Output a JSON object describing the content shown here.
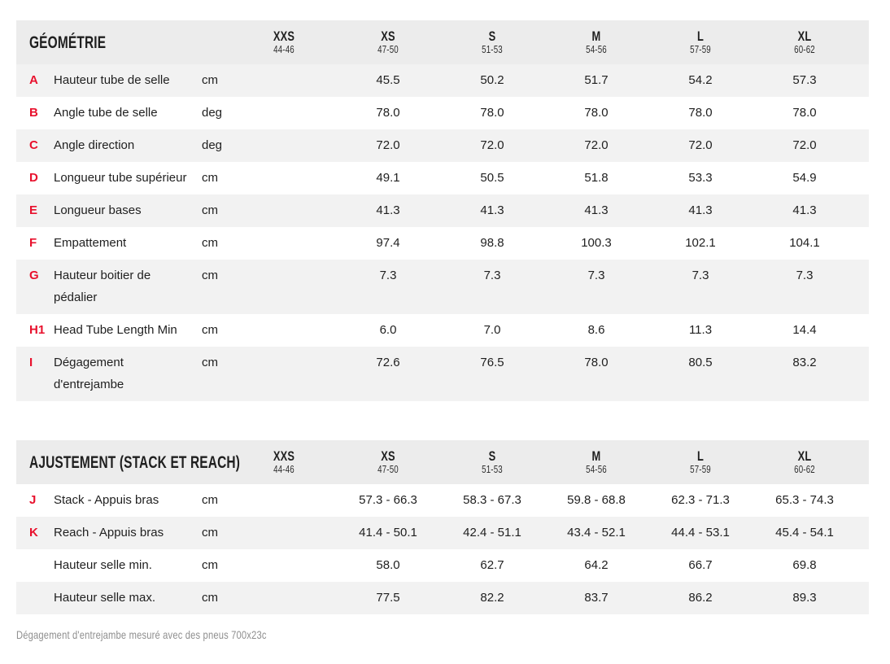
{
  "colors": {
    "accent_red": "#e8112d",
    "header_bg": "#ececec",
    "stripe_bg": "#f2f2f2",
    "text": "#1f1f1f",
    "footnote_gray": "#8f8f8f"
  },
  "sizes": [
    {
      "label": "XXS",
      "range": "44-46"
    },
    {
      "label": "XS",
      "range": "47-50"
    },
    {
      "label": "S",
      "range": "51-53"
    },
    {
      "label": "M",
      "range": "54-56"
    },
    {
      "label": "L",
      "range": "57-59"
    },
    {
      "label": "XL",
      "range": "60-62"
    }
  ],
  "tables": [
    {
      "title": "GÉOMÉTRIE",
      "rows": [
        {
          "letter": "A",
          "label": "Hauteur tube de selle",
          "unit": "cm",
          "values": [
            "",
            "45.5",
            "50.2",
            "51.7",
            "54.2",
            "57.3"
          ]
        },
        {
          "letter": "B",
          "label": "Angle tube de selle",
          "unit": "deg",
          "values": [
            "",
            "78.0",
            "78.0",
            "78.0",
            "78.0",
            "78.0"
          ]
        },
        {
          "letter": "C",
          "label": "Angle direction",
          "unit": "deg",
          "values": [
            "",
            "72.0",
            "72.0",
            "72.0",
            "72.0",
            "72.0"
          ]
        },
        {
          "letter": "D",
          "label": "Longueur tube supérieur",
          "unit": "cm",
          "values": [
            "",
            "49.1",
            "50.5",
            "51.8",
            "53.3",
            "54.9"
          ]
        },
        {
          "letter": "E",
          "label": "Longueur bases",
          "unit": "cm",
          "values": [
            "",
            "41.3",
            "41.3",
            "41.3",
            "41.3",
            "41.3"
          ]
        },
        {
          "letter": "F",
          "label": "Empattement",
          "unit": "cm",
          "values": [
            "",
            "97.4",
            "98.8",
            "100.3",
            "102.1",
            "104.1"
          ]
        },
        {
          "letter": "G",
          "label": "Hauteur boitier de pédalier",
          "unit": "cm",
          "values": [
            "",
            "7.3",
            "7.3",
            "7.3",
            "7.3",
            "7.3"
          ]
        },
        {
          "letter": "H1",
          "label": "Head Tube Length Min",
          "unit": "cm",
          "values": [
            "",
            "6.0",
            "7.0",
            "8.6",
            "11.3",
            "14.4"
          ]
        },
        {
          "letter": "I",
          "label": "Dégagement d'entrejambe",
          "unit": "cm",
          "values": [
            "",
            "72.6",
            "76.5",
            "78.0",
            "80.5",
            "83.2"
          ]
        }
      ]
    },
    {
      "title": "AJUSTEMENT (STACK ET REACH)",
      "rows": [
        {
          "letter": "J",
          "label": "Stack - Appuis bras",
          "unit": "cm",
          "values": [
            "",
            "57.3 - 66.3",
            "58.3 - 67.3",
            "59.8 - 68.8",
            "62.3 - 71.3",
            "65.3 - 74.3"
          ]
        },
        {
          "letter": "K",
          "label": "Reach - Appuis bras",
          "unit": "cm",
          "values": [
            "",
            "41.4 - 50.1",
            "42.4 - 51.1",
            "43.4 - 52.1",
            "44.4 - 53.1",
            "45.4 - 54.1"
          ]
        },
        {
          "letter": "",
          "label": "Hauteur selle min.",
          "unit": "cm",
          "values": [
            "",
            "58.0",
            "62.7",
            "64.2",
            "66.7",
            "69.8"
          ]
        },
        {
          "letter": "",
          "label": "Hauteur selle max.",
          "unit": "cm",
          "values": [
            "",
            "77.5",
            "82.2",
            "83.7",
            "86.2",
            "89.3"
          ]
        }
      ]
    }
  ],
  "footnote": "Dégagement d'entrejambe mesuré avec des pneus 700x23c"
}
